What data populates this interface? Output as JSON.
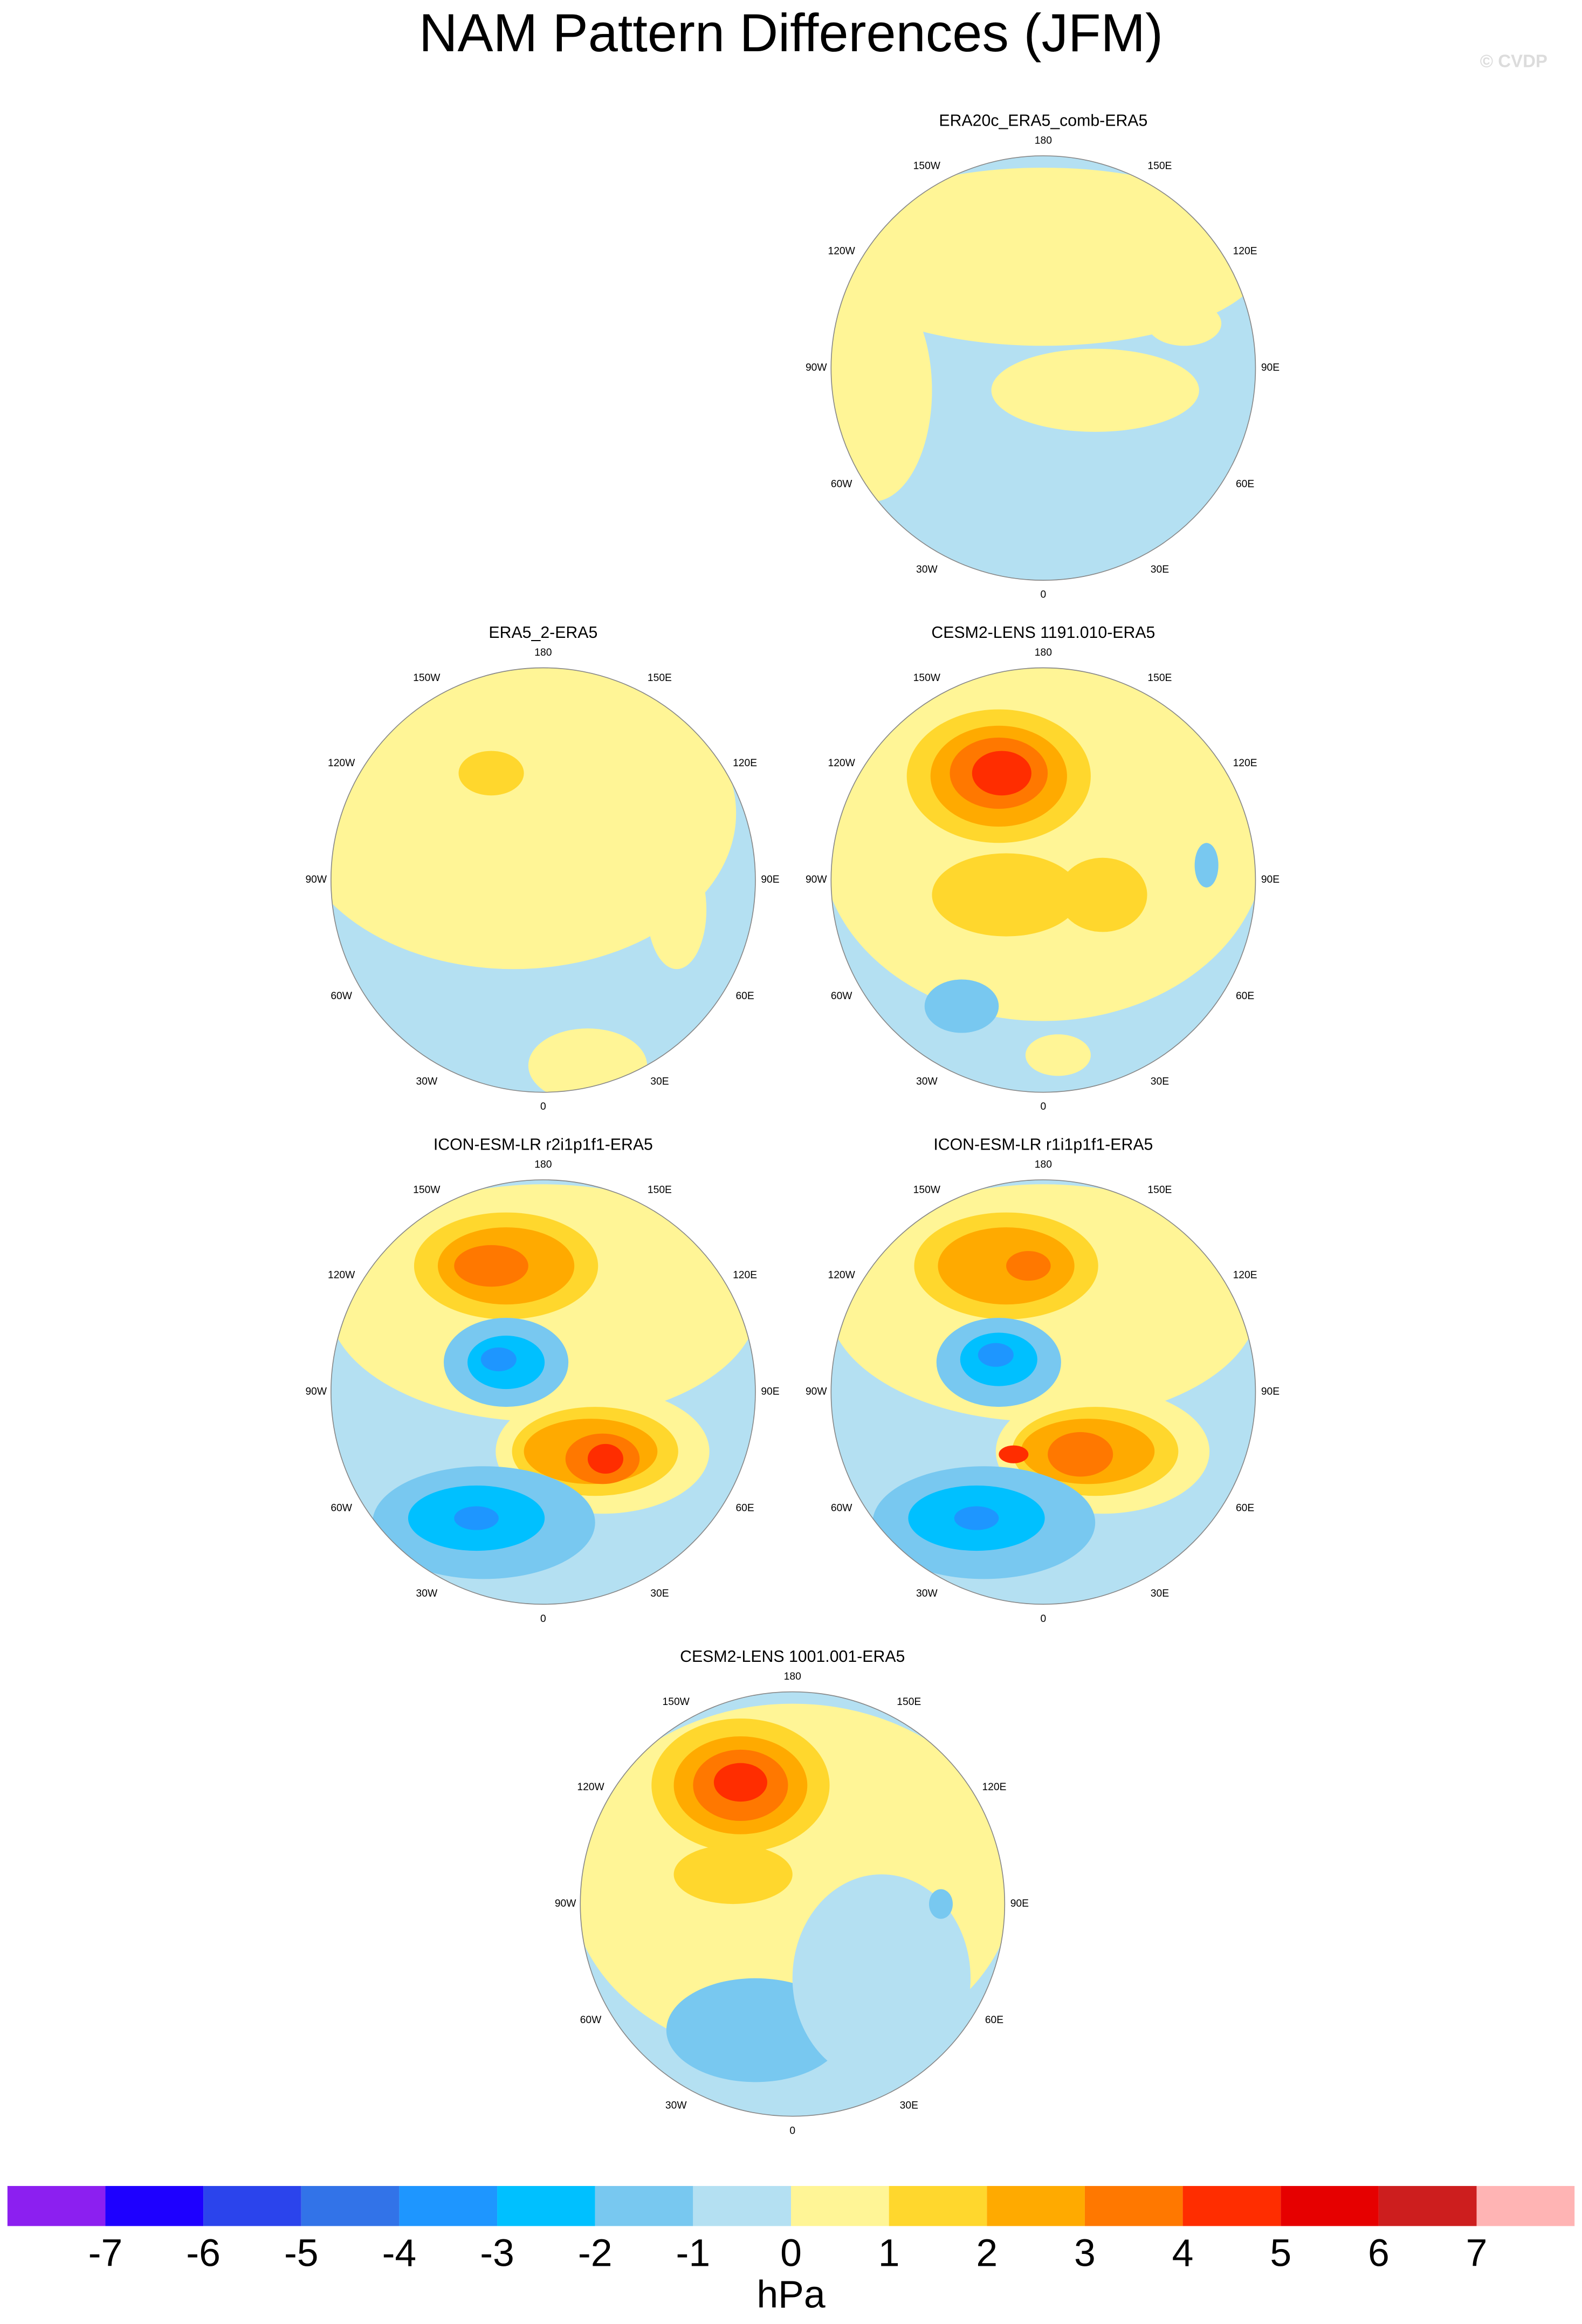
{
  "title": "NAM Pattern Differences (JFM)",
  "credit": "© CVDP",
  "longitude_labels": [
    "180",
    "150E",
    "120E",
    "90E",
    "60E",
    "30E",
    "0",
    "30W",
    "60W",
    "90W",
    "120W",
    "150W"
  ],
  "panels": [
    {
      "title": "ERA20c_ERA5_comb-ERA5"
    },
    {
      "title": "ERA5_2-ERA5"
    },
    {
      "title": "CESM2-LENS 1191.010-ERA5"
    },
    {
      "title": "ICON-ESM-LR r2i1p1f1-ERA5"
    },
    {
      "title": "ICON-ESM-LR r1i1p1f1-ERA5"
    },
    {
      "title": "CESM2-LENS 1001.001-ERA5"
    }
  ],
  "colorbar": {
    "levels": [
      -7,
      -6,
      -5,
      -4,
      -3,
      -2,
      -1,
      0,
      1,
      2,
      3,
      4,
      5,
      6,
      7
    ],
    "colors": [
      "#8c1ff0",
      "#1e00ff",
      "#2b44ec",
      "#3273e8",
      "#1e96ff",
      "#00c0ff",
      "#78c8f0",
      "#b4e0f2",
      "#fff596",
      "#ffd72d",
      "#ffaa00",
      "#ff7800",
      "#ff2d00",
      "#e60000",
      "#cd1e1e",
      "#ffb4b4"
    ],
    "units": "hPa"
  }
}
